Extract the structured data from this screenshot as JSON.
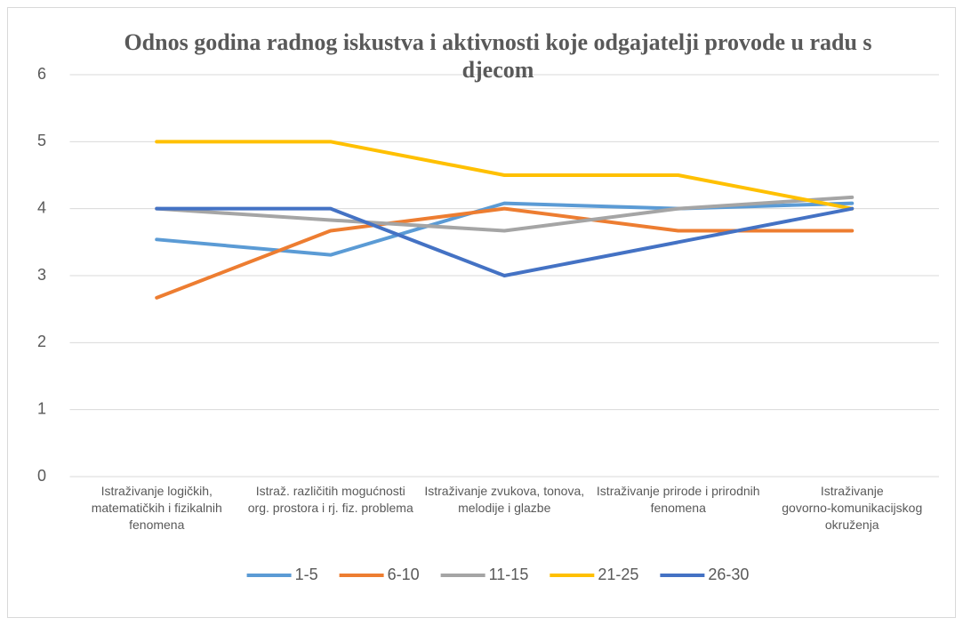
{
  "chart_data": {
    "type": "line",
    "title": "Odnos godina radnog iskustva i aktivnosti koje odgajatelji provode u radu s djecom",
    "categories": [
      "Istraživanje logičkih, matematičkih i fizikalnih fenomena",
      "Istraž. različitih mogućnosti org. prostora i rj. fiz. problema",
      "Istraživanje zvukova, tonova, melodije i glazbe",
      "Istraživanje prirode i prirodnih fenomena",
      "Istraživanje govorno-komunikacijskog okruženja"
    ],
    "series": [
      {
        "name": "1-5",
        "color": "#5b9bd5",
        "values": [
          3.54,
          3.31,
          4.08,
          4.0,
          4.08
        ]
      },
      {
        "name": "6-10",
        "color": "#ed7d31",
        "values": [
          2.67,
          3.67,
          4.0,
          3.67,
          3.67
        ]
      },
      {
        "name": "11-15",
        "color": "#a5a5a5",
        "values": [
          4.0,
          3.83,
          3.67,
          4.0,
          4.17
        ]
      },
      {
        "name": "21-25",
        "color": "#ffc000",
        "values": [
          5,
          5,
          4.5,
          4.5,
          4.0
        ]
      },
      {
        "name": "26-30",
        "color": "#4472c4",
        "values": [
          4,
          4,
          3,
          3.5,
          4
        ]
      }
    ],
    "ylim": [
      0,
      6
    ],
    "yticks": [
      0,
      1,
      2,
      3,
      4,
      5,
      6
    ],
    "grid": true,
    "legend": "bottom"
  }
}
